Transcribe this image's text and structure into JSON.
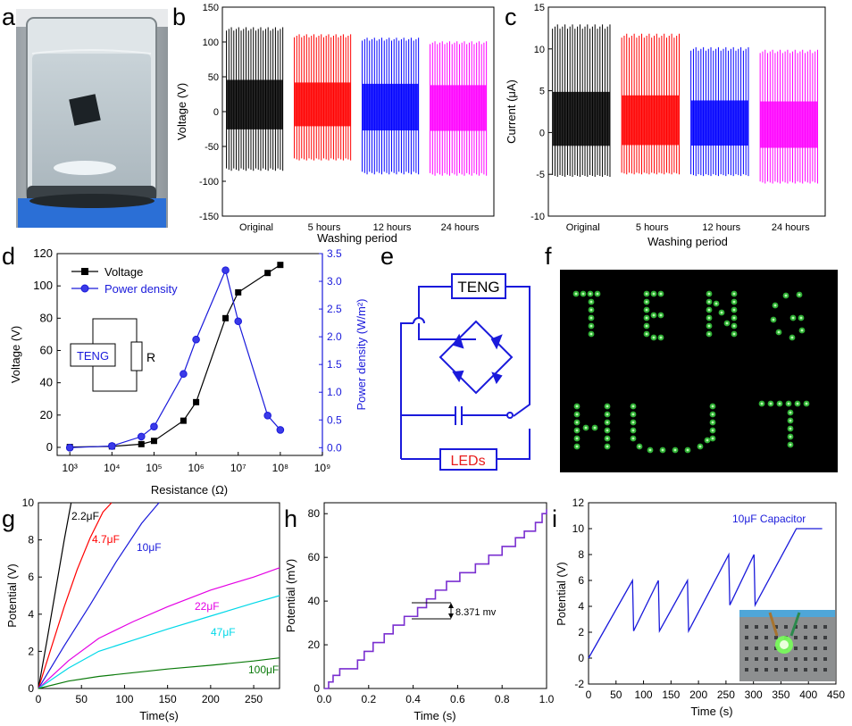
{
  "panels": {
    "a": {
      "label": "a"
    },
    "b": {
      "label": "b"
    },
    "c": {
      "label": "c"
    },
    "d": {
      "label": "d"
    },
    "e": {
      "label": "e"
    },
    "f": {
      "label": "f"
    },
    "g": {
      "label": "g"
    },
    "h": {
      "label": "h"
    },
    "i": {
      "label": "i"
    }
  },
  "circuit_d": {
    "teng": "TENG",
    "resistor": "R"
  },
  "circuit_e": {
    "teng": "TENG",
    "leds": "LEDs"
  },
  "colors": {
    "voltage": "#000000",
    "power": "#1a1adb",
    "original": "#000000",
    "h5": "#ff0000",
    "h12": "#0000ff",
    "h24": "#ff00ff",
    "purple": "#7a2fd0"
  },
  "chart_data": [
    {
      "id": "b",
      "type": "line",
      "title": "",
      "xlabel": "Washing period",
      "ylabel": "Voltage (V)",
      "categories": [
        "Original",
        "5 hours",
        "12 hours",
        "24 hours"
      ],
      "ylim": [
        -150,
        150
      ],
      "yticks": [
        -150,
        -100,
        -50,
        0,
        50,
        100,
        150
      ],
      "series": [
        {
          "name": "Original",
          "peak_max": 120,
          "peak_min": -85
        },
        {
          "name": "5 hours",
          "peak_max": 110,
          "peak_min": -70
        },
        {
          "name": "12 hours",
          "peak_max": 105,
          "peak_min": -90
        },
        {
          "name": "24 hours",
          "peak_max": 100,
          "peak_min": -92
        }
      ]
    },
    {
      "id": "c",
      "type": "line",
      "title": "",
      "xlabel": "Washing period",
      "ylabel": "Current (μA)",
      "categories": [
        "Original",
        "5 hours",
        "12 hours",
        "24 hours"
      ],
      "ylim": [
        -10,
        15
      ],
      "yticks": [
        -10,
        -5,
        0,
        5,
        10,
        15
      ],
      "series": [
        {
          "name": "Original",
          "peak_max": 12.8,
          "peak_min": -5.3
        },
        {
          "name": "5 hours",
          "peak_max": 11.7,
          "peak_min": -5.0
        },
        {
          "name": "12 hours",
          "peak_max": 10.1,
          "peak_min": -5.2
        },
        {
          "name": "24 hours",
          "peak_max": 9.8,
          "peak_min": -6.1
        }
      ]
    },
    {
      "id": "d",
      "type": "line",
      "xlabel": "Resistance (Ω)",
      "ylabel": "Voltage (V)",
      "ylabel2": "Power density (W/m²)",
      "xscale": "log",
      "xlim": [
        500,
        1000000000
      ],
      "xticks": [
        "10³",
        "10⁴",
        "10⁵",
        "10⁶",
        "10⁷",
        "10⁸",
        "10⁹"
      ],
      "ylim": [
        -5,
        120
      ],
      "yticks": [
        0,
        20,
        40,
        60,
        80,
        100,
        120
      ],
      "ylim2": [
        -0.14,
        3.5
      ],
      "yticks2": [
        "0.0",
        "0.5",
        "1.0",
        "1.5",
        "2.0",
        "2.5",
        "3.0",
        "3.5"
      ],
      "legend": [
        "Voltage",
        "Power density"
      ],
      "series": [
        {
          "name": "Voltage",
          "x": [
            1000,
            10000,
            50000,
            100000,
            500000,
            1000000,
            5000000,
            10000000,
            50000000,
            100000000
          ],
          "y": [
            0.2,
            0.6,
            2,
            4,
            16.5,
            28,
            80,
            96,
            108,
            113
          ]
        },
        {
          "name": "Power density",
          "x": [
            1000,
            10000,
            50000,
            100000,
            500000,
            1000000,
            5000000,
            10000000,
            50000000,
            100000000
          ],
          "y": [
            0.0,
            0.03,
            0.2,
            0.38,
            1.33,
            1.95,
            3.2,
            2.28,
            0.58,
            0.32
          ]
        }
      ]
    },
    {
      "id": "g",
      "type": "line",
      "xlabel": "Time(s)",
      "ylabel": "Potential (V)",
      "xlim": [
        0,
        280
      ],
      "ylim": [
        0,
        10
      ],
      "xticks": [
        0,
        50,
        100,
        150,
        200,
        250
      ],
      "yticks": [
        0,
        2,
        4,
        6,
        8,
        10
      ],
      "series": [
        {
          "name": "2.2μF",
          "x": [
            0,
            10,
            20,
            30,
            38
          ],
          "y": [
            0,
            2.6,
            5.3,
            8.0,
            10
          ]
        },
        {
          "name": "4.7μF",
          "x": [
            0,
            15,
            30,
            45,
            60,
            75,
            85
          ],
          "y": [
            0,
            2.2,
            4.4,
            6.4,
            8.1,
            9.5,
            10
          ]
        },
        {
          "name": "10μF",
          "x": [
            0,
            30,
            60,
            90,
            120,
            140
          ],
          "y": [
            0,
            2.3,
            4.5,
            6.8,
            8.9,
            10
          ]
        },
        {
          "name": "22μF",
          "x": [
            0,
            35,
            70,
            110,
            150,
            200,
            250,
            280
          ],
          "y": [
            0,
            1.5,
            2.7,
            3.6,
            4.4,
            5.3,
            6.0,
            6.5
          ]
        },
        {
          "name": "47μF",
          "x": [
            0,
            35,
            70,
            110,
            150,
            200,
            250,
            280
          ],
          "y": [
            0,
            1.1,
            2.0,
            2.6,
            3.2,
            3.9,
            4.6,
            5.0
          ]
        },
        {
          "name": "100μF",
          "x": [
            0,
            35,
            70,
            110,
            150,
            200,
            250,
            280
          ],
          "y": [
            0,
            0.4,
            0.65,
            0.85,
            1.05,
            1.25,
            1.48,
            1.65
          ]
        }
      ]
    },
    {
      "id": "h",
      "type": "line",
      "xlabel": "Time (s)",
      "ylabel": "Potential (mV)",
      "xlim": [
        0,
        1.0
      ],
      "ylim": [
        0,
        85
      ],
      "xticks": [
        "0.0",
        "0.2",
        "0.4",
        "0.6",
        "0.8",
        "1.0"
      ],
      "yticks": [
        0,
        20,
        40,
        60,
        80
      ],
      "annotation": "8.371 mv",
      "steps": {
        "x": [
          0.0,
          0.02,
          0.04,
          0.07,
          0.15,
          0.18,
          0.22,
          0.27,
          0.31,
          0.36,
          0.42,
          0.46,
          0.5,
          0.55,
          0.61,
          0.68,
          0.74,
          0.8,
          0.86,
          0.9,
          0.95,
          0.98,
          1.0
        ],
        "y": [
          0,
          3,
          6,
          9,
          13,
          17,
          21,
          25,
          29,
          33,
          37,
          41,
          45,
          49,
          53,
          57,
          61,
          65,
          69,
          72,
          76,
          80,
          82
        ]
      }
    },
    {
      "id": "i",
      "type": "line",
      "xlabel": "Time (s)",
      "ylabel": "Potential (V)",
      "xlim": [
        0,
        450
      ],
      "ylim": [
        -2,
        12
      ],
      "xticks": [
        0,
        50,
        100,
        150,
        200,
        250,
        300,
        350,
        400,
        450
      ],
      "yticks": [
        -2,
        0,
        2,
        4,
        6,
        8,
        10,
        12
      ],
      "legend": [
        "10μF Capacitor"
      ],
      "series": [
        {
          "name": "10μF Capacitor",
          "x": [
            0,
            80,
            82,
            127,
            129,
            180,
            182,
            255,
            257,
            301,
            303,
            378,
            425
          ],
          "y": [
            0,
            6,
            2.1,
            6,
            2.1,
            6,
            2.1,
            8,
            4.1,
            8,
            4.1,
            10,
            10
          ]
        }
      ]
    }
  ]
}
